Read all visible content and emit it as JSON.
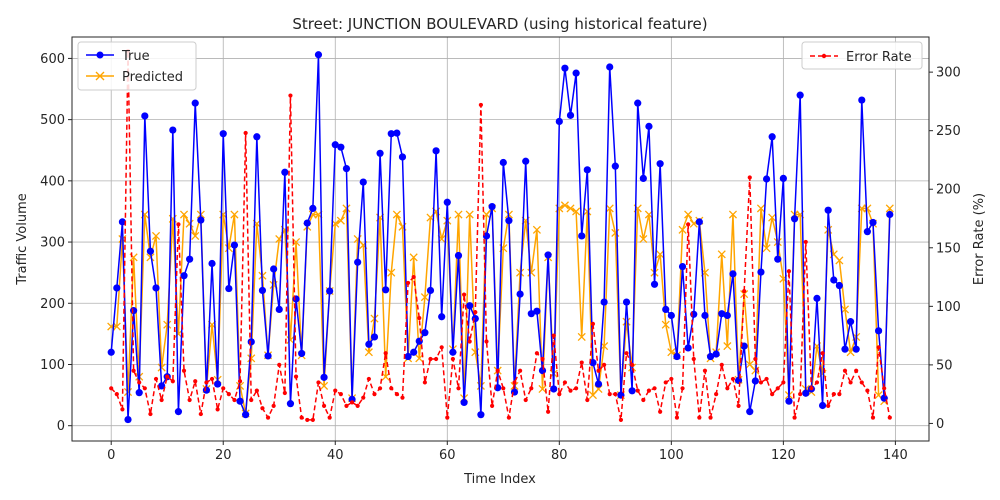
{
  "chart_data": {
    "type": "line",
    "title": "Street: JUNCTION BOULEVARD (using historical feature)",
    "xlabel": "Time Index",
    "ylabel": "Traffic Volume",
    "ylabel_right": "Error Rate (%)",
    "xlim": [
      -7,
      146
    ],
    "ylim": [
      -25,
      635
    ],
    "ylim_right": [
      -15,
      330
    ],
    "xticks": [
      0,
      20,
      40,
      60,
      80,
      100,
      120,
      140
    ],
    "yticks": [
      0,
      100,
      200,
      300,
      400,
      500,
      600
    ],
    "yticks_right": [
      0,
      50,
      100,
      150,
      200,
      250,
      300
    ],
    "grid": true,
    "colors": {
      "true": "#0000ff",
      "predicted": "#ffa500",
      "error": "#ff0000"
    },
    "legend_left": {
      "placement": "top-left",
      "entries": [
        "True",
        "Predicted"
      ]
    },
    "legend_right": {
      "placement": "top-right",
      "entries": [
        "Error Rate"
      ]
    },
    "series": [
      {
        "name": "True",
        "axis": "left",
        "values": [
          120,
          225,
          333,
          10,
          188,
          54,
          506,
          285,
          225,
          65,
          80,
          483,
          23,
          245,
          272,
          527,
          336,
          58,
          265,
          68,
          477,
          224,
          295,
          40,
          18,
          137,
          472,
          221,
          114,
          256,
          190,
          414,
          36,
          207,
          118,
          331,
          355,
          606,
          79,
          220,
          459,
          455,
          420,
          43,
          267,
          398,
          133,
          145,
          445,
          222,
          477,
          478,
          439,
          113,
          120,
          138,
          152,
          221,
          449,
          178,
          365,
          120,
          278,
          38,
          196,
          175,
          18,
          310,
          358,
          62,
          430,
          335,
          55,
          215,
          432,
          183,
          187,
          90,
          279,
          60,
          497,
          584,
          507,
          576,
          310,
          418,
          103,
          68,
          202,
          586,
          424,
          50,
          202,
          57,
          527,
          404,
          489,
          231,
          428,
          190,
          180,
          113,
          260,
          127,
          182,
          333,
          180,
          113,
          117,
          183,
          180,
          248,
          74,
          130,
          23,
          73,
          251,
          403,
          472,
          272,
          404,
          40,
          338,
          540,
          53,
          60,
          208,
          33,
          352,
          238,
          229,
          125,
          170,
          125,
          532,
          317,
          332,
          155,
          45,
          345
        ]
      },
      {
        "name": "Predicted",
        "axis": "left",
        "values": [
          162,
          162,
          305,
          55,
          275,
          80,
          345,
          275,
          310,
          95,
          165,
          338,
          150,
          345,
          330,
          310,
          345,
          60,
          165,
          75,
          345,
          290,
          345,
          65,
          20,
          110,
          330,
          245,
          115,
          230,
          305,
          320,
          140,
          300,
          115,
          325,
          345,
          345,
          65,
          220,
          330,
          335,
          355,
          45,
          305,
          295,
          120,
          175,
          340,
          80,
          250,
          345,
          325,
          110,
          275,
          110,
          210,
          340,
          350,
          305,
          335,
          125,
          345,
          45,
          345,
          120,
          65,
          345,
          355,
          90,
          290,
          345,
          65,
          250,
          335,
          250,
          320,
          60,
          275,
          85,
          355,
          360,
          355,
          350,
          145,
          350,
          50,
          60,
          130,
          355,
          315,
          50,
          170,
          95,
          355,
          305,
          345,
          250,
          280,
          165,
          120,
          115,
          320,
          345,
          330,
          335,
          250,
          110,
          120,
          280,
          130,
          345,
          75,
          215,
          100,
          90,
          355,
          290,
          340,
          300,
          240,
          50,
          345,
          345,
          60,
          55,
          130,
          85,
          320,
          280,
          270,
          190,
          120,
          145,
          355,
          355,
          330,
          50,
          40,
          355
        ]
      },
      {
        "name": "Error Rate",
        "axis": "right",
        "values": [
          30,
          25,
          12,
          318,
          45,
          35,
          30,
          8,
          38,
          20,
          40,
          36,
          170,
          45,
          20,
          36,
          8,
          35,
          38,
          12,
          30,
          25,
          20,
          36,
          248,
          20,
          28,
          13,
          5,
          15,
          50,
          26,
          280,
          40,
          5,
          3,
          3,
          35,
          15,
          5,
          28,
          25,
          15,
          18,
          15,
          22,
          38,
          25,
          30,
          60,
          30,
          25,
          22,
          120,
          125,
          90,
          35,
          55,
          55,
          65,
          5,
          55,
          30,
          110,
          70,
          95,
          272,
          70,
          15,
          45,
          30,
          5,
          35,
          45,
          20,
          30,
          60,
          55,
          10,
          75,
          25,
          35,
          28,
          30,
          52,
          20,
          85,
          45,
          50,
          25,
          25,
          3,
          60,
          50,
          28,
          20,
          28,
          30,
          10,
          35,
          38,
          5,
          30,
          170,
          55,
          5,
          45,
          5,
          25,
          50,
          30,
          38,
          15,
          113,
          210,
          55,
          35,
          38,
          25,
          30,
          35,
          130,
          5,
          25,
          155,
          30,
          35,
          60,
          15,
          25,
          25,
          45,
          35,
          45,
          35,
          28,
          5,
          65,
          30,
          5
        ]
      }
    ]
  }
}
